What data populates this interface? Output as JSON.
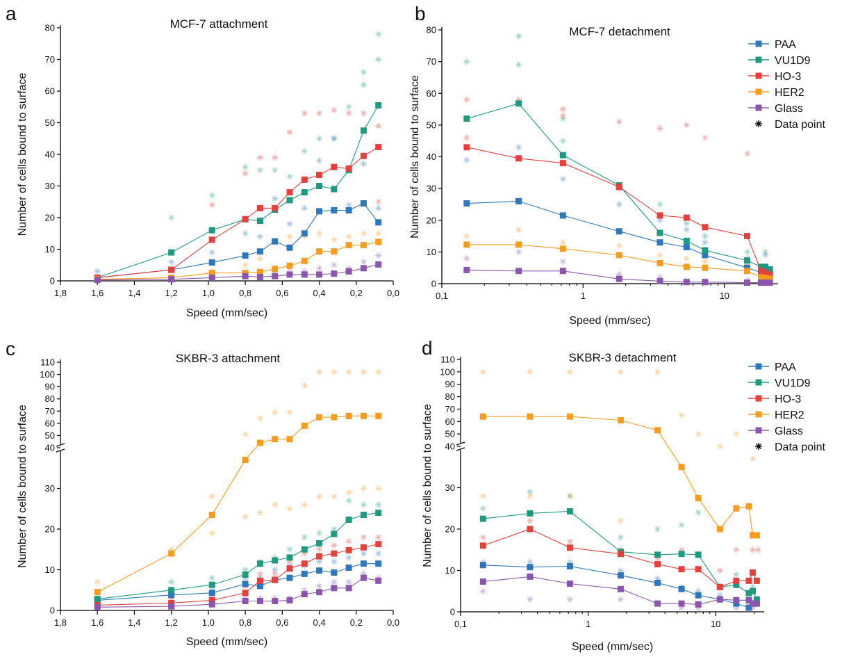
{
  "colors": {
    "PAA": "#2d77bd",
    "VU1D9": "#1f9a80",
    "HO-3": "#e5403c",
    "HER2": "#f79c1f",
    "Glass": "#8a56ad",
    "axis": "#000000"
  },
  "legend": {
    "items": [
      "PAA",
      "VU1D9",
      "HO-3",
      "HER2",
      "Glass"
    ],
    "data_point": "Data point"
  },
  "chart_data": [
    {
      "panel": "a",
      "title": "MCF-7 attachment",
      "type": "line",
      "xlabel": "Speed (mm/sec)",
      "ylabel": "Number of cells bound to surface",
      "xscale": "linear",
      "x_reversed": true,
      "xlim": [
        1.8,
        0.0
      ],
      "ylim": [
        0,
        80
      ],
      "xticks": [
        "1,8",
        "1,6",
        "1,4",
        "1,2",
        "1,0",
        "0,8",
        "0,6",
        "0,4",
        "0,2",
        "0,0"
      ],
      "yticks": [
        "0",
        "10",
        "20",
        "30",
        "40",
        "50",
        "60",
        "70",
        "80"
      ],
      "x": [
        1.6,
        1.2,
        0.98,
        0.8,
        0.72,
        0.64,
        0.56,
        0.48,
        0.4,
        0.32,
        0.24,
        0.16,
        0.08
      ],
      "series": [
        {
          "name": "PAA",
          "values": [
            1,
            3.5,
            5.8,
            8,
            9.3,
            12.5,
            10.5,
            15,
            22,
            22.3,
            22.3,
            24.5,
            18.5
          ]
        },
        {
          "name": "VU1D9",
          "values": [
            1,
            9,
            16,
            19.5,
            19,
            22.5,
            25.5,
            28,
            30,
            29,
            35,
            47.5,
            55.5
          ]
        },
        {
          "name": "HO-3",
          "values": [
            1,
            3.5,
            13,
            19.5,
            23,
            23,
            28,
            32,
            33.5,
            36,
            35.5,
            39.5,
            42.3
          ]
        },
        {
          "name": "HER2",
          "values": [
            0.5,
            1,
            2.5,
            2.5,
            2.8,
            3.8,
            4.8,
            6.3,
            9.3,
            9.3,
            11.3,
            11.3,
            12.3
          ]
        },
        {
          "name": "Glass",
          "values": [
            0.3,
            0.5,
            1,
            1.5,
            1.2,
            1.5,
            2,
            2,
            2,
            2.3,
            3,
            4,
            5.2
          ]
        }
      ],
      "data_points": [
        {
          "series": "PAA",
          "x": [
            1.6,
            1.2,
            0.98,
            0.8,
            0.72,
            0.64,
            0.56,
            0.48,
            0.4,
            0.32,
            0.24,
            0.16,
            0.08
          ],
          "y": [
            3,
            6,
            9,
            15,
            14,
            26,
            18,
            23,
            38,
            45,
            24,
            37,
            23
          ]
        },
        {
          "series": "VU1D9",
          "x": [
            1.2,
            0.98,
            0.8,
            0.72,
            0.64,
            0.56,
            0.48,
            0.4,
            0.32,
            0.24,
            0.16,
            0.16,
            0.08,
            0.08
          ],
          "y": [
            20,
            27,
            36,
            35,
            35,
            33,
            41,
            45,
            45,
            55,
            62,
            66,
            70,
            78
          ]
        },
        {
          "series": "HO-3",
          "x": [
            0.98,
            0.8,
            0.72,
            0.64,
            0.56,
            0.48,
            0.4,
            0.32,
            0.24,
            0.16,
            0.08,
            0.08
          ],
          "y": [
            24,
            34,
            39,
            39,
            47,
            53,
            53,
            54,
            53,
            53,
            49,
            25
          ]
        },
        {
          "series": "HER2",
          "x": [
            0.98,
            0.8,
            0.72,
            0.64,
            0.56,
            0.48,
            0.4,
            0.32,
            0.24,
            0.16,
            0.08
          ],
          "y": [
            3,
            5,
            7,
            12,
            14,
            14,
            15,
            13,
            14,
            15,
            15
          ]
        },
        {
          "series": "Glass",
          "x": [
            0.98,
            0.8,
            0.72,
            0.64,
            0.56,
            0.48,
            0.4,
            0.32,
            0.24,
            0.16,
            0.08
          ],
          "y": [
            1,
            2,
            2,
            3,
            4,
            3,
            4,
            5,
            4,
            6,
            8
          ]
        }
      ]
    },
    {
      "panel": "b",
      "title": "MCF-7 detachment",
      "type": "line",
      "xlabel": "Speed (mm/sec)",
      "ylabel": "Number of cells bound to surface",
      "xscale": "log",
      "xlim": [
        0.1,
        24
      ],
      "ylim": [
        0,
        80
      ],
      "xticks": [
        "0,1",
        "1",
        "10"
      ],
      "yticks": [
        "0",
        "10",
        "20",
        "30",
        "40",
        "50",
        "60",
        "70",
        "80"
      ],
      "legend": "top-right",
      "x": [
        0.15,
        0.35,
        0.72,
        1.8,
        3.5,
        5.4,
        7.3,
        14.5,
        18.2,
        19.5,
        21
      ],
      "series": [
        {
          "name": "PAA",
          "values": [
            25.3,
            26,
            21.5,
            16.5,
            13,
            11.5,
            9,
            5,
            3.5,
            3.5,
            3.3
          ]
        },
        {
          "name": "VU1D9",
          "values": [
            52,
            56.8,
            40.5,
            31,
            16,
            13.5,
            10.5,
            7.3,
            5.3,
            5.3,
            4.5
          ]
        },
        {
          "name": "HO-3",
          "values": [
            43,
            39.5,
            38,
            30.5,
            21.5,
            20.8,
            17.8,
            15,
            4,
            3.5,
            2.8
          ]
        },
        {
          "name": "HER2",
          "values": [
            12.3,
            12.3,
            11,
            9,
            6.5,
            5.3,
            5,
            4,
            2,
            1.8,
            1.6
          ]
        },
        {
          "name": "Glass",
          "values": [
            4.3,
            4,
            4,
            1.5,
            0.8,
            0.5,
            0.5,
            0.3,
            0.3,
            0.3,
            0.3
          ]
        }
      ],
      "data_points": [
        {
          "series": "PAA",
          "x": [
            0.15,
            0.35,
            0.72,
            1.8,
            3.5,
            5.4,
            7.3,
            14.5,
            19.5
          ],
          "y": [
            39,
            43,
            33,
            25,
            20,
            17,
            13,
            8,
            9
          ]
        },
        {
          "series": "VU1D9",
          "x": [
            0.15,
            0.15,
            0.35,
            0.35,
            0.72,
            0.72,
            1.8,
            3.5,
            5.4,
            7.3,
            14.5,
            19.5
          ],
          "y": [
            70,
            52,
            78,
            69,
            52,
            45,
            30,
            25,
            19,
            15,
            10,
            10
          ]
        },
        {
          "series": "HO-3",
          "x": [
            0.15,
            0.15,
            0.35,
            0.72,
            0.72,
            1.8,
            3.5,
            5.4,
            7.3,
            14.5
          ],
          "y": [
            58,
            46,
            58,
            55,
            53,
            51,
            49,
            50,
            46,
            41
          ]
        },
        {
          "series": "HER2",
          "x": [
            0.15,
            0.35,
            0.72,
            1.8,
            3.5,
            5.4,
            7.3,
            14.5
          ],
          "y": [
            15,
            17,
            13,
            12,
            9,
            8,
            7,
            6
          ]
        },
        {
          "series": "Glass",
          "x": [
            0.15,
            0.35,
            0.72,
            1.8,
            3.5,
            5.4,
            7.3,
            14.5
          ],
          "y": [
            8,
            10,
            7,
            3,
            2,
            1,
            1,
            1
          ]
        }
      ]
    },
    {
      "panel": "c",
      "title": "SKBR-3 attachment",
      "type": "line",
      "xlabel": "Speed (mm/sec)",
      "ylabel": "Number of cells bound to surface",
      "xscale": "linear",
      "x_reversed": true,
      "xlim": [
        1.8,
        0.0
      ],
      "y_break": true,
      "ylim_lower": [
        0,
        40
      ],
      "ylim_upper": [
        40,
        110
      ],
      "xticks": [
        "1,8",
        "1,6",
        "1,4",
        "1,2",
        "1,0",
        "0,8",
        "0,6",
        "0,4",
        "0,2",
        "0,0"
      ],
      "yticks": [
        "0",
        "10",
        "20",
        "30",
        "40",
        "50",
        "60",
        "70",
        "80",
        "90",
        "100",
        "110"
      ],
      "x": [
        1.6,
        1.2,
        0.98,
        0.8,
        0.72,
        0.64,
        0.56,
        0.48,
        0.4,
        0.32,
        0.24,
        0.16,
        0.08
      ],
      "series": [
        {
          "name": "PAA",
          "values": [
            2.5,
            3.8,
            4.3,
            6.5,
            6,
            7.5,
            8,
            9,
            9.8,
            9.3,
            10.5,
            11.5,
            11.5
          ]
        },
        {
          "name": "VU1D9",
          "values": [
            2.8,
            5,
            6.3,
            8.8,
            11.5,
            12.3,
            13,
            15,
            16.5,
            18.8,
            22.3,
            23.5,
            24
          ]
        },
        {
          "name": "HO-3",
          "values": [
            1.3,
            1.8,
            2.5,
            4.3,
            7.3,
            7.5,
            10.3,
            11.5,
            13.3,
            14,
            14.8,
            15.5,
            16.3
          ]
        },
        {
          "name": "HER2",
          "values": [
            4.5,
            14,
            23.5,
            37,
            44,
            47,
            47,
            58,
            65,
            65,
            66,
            66,
            66
          ]
        },
        {
          "name": "Glass",
          "values": [
            0.8,
            1,
            1.5,
            2.3,
            2.3,
            2.3,
            2.5,
            4,
            4.5,
            5.5,
            5.5,
            8,
            7.3
          ]
        }
      ],
      "data_points": [
        {
          "series": "PAA",
          "x": [
            1.6,
            1.2,
            0.98,
            0.8,
            0.72,
            0.64,
            0.56,
            0.48,
            0.4,
            0.32,
            0.24,
            0.16,
            0.08
          ],
          "y": [
            3,
            4,
            5,
            8,
            8,
            10,
            11,
            11,
            12,
            12,
            13,
            14,
            14
          ]
        },
        {
          "series": "VU1D9",
          "x": [
            1.6,
            1.2,
            0.98,
            0.8,
            0.72,
            0.64,
            0.56,
            0.48,
            0.4,
            0.32,
            0.24,
            0.16,
            0.08
          ],
          "y": [
            3,
            7,
            8,
            10,
            12,
            13,
            15,
            18,
            19,
            20,
            27,
            26,
            26
          ]
        },
        {
          "series": "HO-3",
          "x": [
            1.6,
            1.2,
            0.98,
            0.8,
            0.72,
            0.64,
            0.56,
            0.48,
            0.4,
            0.32,
            0.24,
            0.16,
            0.08
          ],
          "y": [
            2,
            3,
            4,
            6,
            9,
            9,
            12,
            14,
            15,
            16,
            17,
            18,
            18
          ]
        },
        {
          "series": "HER2",
          "x": [
            1.6,
            1.2,
            0.98,
            0.98,
            0.8,
            0.8,
            0.72,
            0.72,
            0.64,
            0.64,
            0.56,
            0.56,
            0.48,
            0.48,
            0.4,
            0.4,
            0.32,
            0.32,
            0.24,
            0.24,
            0.16,
            0.16,
            0.08,
            0.08
          ],
          "y": [
            7,
            15,
            28,
            19,
            51,
            23,
            64,
            24,
            69,
            26,
            69,
            25,
            91,
            26,
            102,
            28,
            102,
            28,
            102,
            29,
            102,
            30,
            102,
            30
          ]
        },
        {
          "series": "Glass",
          "x": [
            1.6,
            1.2,
            0.98,
            0.8,
            0.72,
            0.64,
            0.56,
            0.48,
            0.4,
            0.32,
            0.24,
            0.16,
            0.08
          ],
          "y": [
            1,
            1,
            2,
            3,
            3,
            3,
            3,
            5,
            6,
            7,
            7,
            9,
            8
          ]
        }
      ]
    },
    {
      "panel": "d",
      "title": "SKBR-3 detachment",
      "type": "line",
      "xlabel": "Speed (mm/sec)",
      "ylabel": "Number of cells bound to surface",
      "xscale": "log",
      "xlim": [
        0.1,
        24
      ],
      "y_break": true,
      "ylim_lower": [
        0,
        40
      ],
      "ylim_upper": [
        40,
        110
      ],
      "xticks": [
        "0,1",
        "1",
        "10"
      ],
      "yticks": [
        "0",
        "10",
        "20",
        "30",
        "40",
        "50",
        "60",
        "70",
        "80",
        "90",
        "100",
        "110"
      ],
      "legend": "top-right",
      "x": [
        0.15,
        0.35,
        0.72,
        1.8,
        3.5,
        5.4,
        7.3,
        10.8,
        14.5,
        18.2,
        19.5,
        21
      ],
      "series": [
        {
          "name": "PAA",
          "values": [
            11.3,
            10.8,
            11,
            8.8,
            7,
            5.5,
            4,
            3,
            2,
            1,
            2,
            2
          ]
        },
        {
          "name": "VU1D9",
          "values": [
            22.5,
            23.8,
            24.3,
            14.5,
            13.8,
            14,
            13.8,
            6,
            6.5,
            4.5,
            5,
            3
          ]
        },
        {
          "name": "HO-3",
          "values": [
            16,
            20,
            15.5,
            14,
            11.5,
            10.3,
            10.3,
            6,
            7.5,
            7.5,
            9.5,
            7.5
          ]
        },
        {
          "name": "HER2",
          "values": [
            64,
            64,
            64,
            61,
            53,
            35,
            27.5,
            20,
            25,
            25.5,
            18.5,
            18.5
          ]
        },
        {
          "name": "Glass",
          "values": [
            7.3,
            8.5,
            6.8,
            5.5,
            2,
            2,
            1.8,
            3,
            2.8,
            2.8,
            2,
            2
          ]
        }
      ],
      "data_points": [
        {
          "series": "PAA",
          "x": [
            0.15,
            0.35,
            0.72,
            1.8,
            3.5,
            5.4,
            7.3,
            10.8,
            14.5,
            19.5
          ],
          "y": [
            12,
            12,
            12,
            10,
            8,
            6,
            5,
            4,
            3,
            2
          ]
        },
        {
          "series": "VU1D9",
          "x": [
            0.15,
            0.35,
            0.72,
            1.8,
            3.5,
            5.4,
            7.3,
            14.5,
            19.5
          ],
          "y": [
            25,
            29,
            28,
            18,
            20,
            21,
            24,
            9,
            6
          ]
        },
        {
          "series": "HO-3",
          "x": [
            0.15,
            0.35,
            0.72,
            1.8,
            3.5,
            5.4,
            7.3,
            10.8,
            14.5,
            19.5,
            21.5
          ],
          "y": [
            18,
            22,
            17,
            15,
            13,
            15,
            14,
            10,
            15,
            15,
            15
          ]
        },
        {
          "series": "HER2",
          "x": [
            0.15,
            0.15,
            0.35,
            0.35,
            0.72,
            0.72,
            1.8,
            1.8,
            3.5,
            5.4,
            7.3,
            10.8,
            14.5,
            19.5
          ],
          "y": [
            100,
            28,
            100,
            28,
            100,
            28,
            100,
            22,
            100,
            65,
            50,
            40,
            50,
            37
          ]
        },
        {
          "series": "Glass",
          "x": [
            0.15,
            0.35,
            0.72,
            1.8,
            3.5,
            5.4,
            7.3,
            14.5,
            19.5
          ],
          "y": [
            5,
            3,
            3,
            3,
            2,
            1,
            1,
            1,
            1
          ]
        }
      ]
    }
  ]
}
